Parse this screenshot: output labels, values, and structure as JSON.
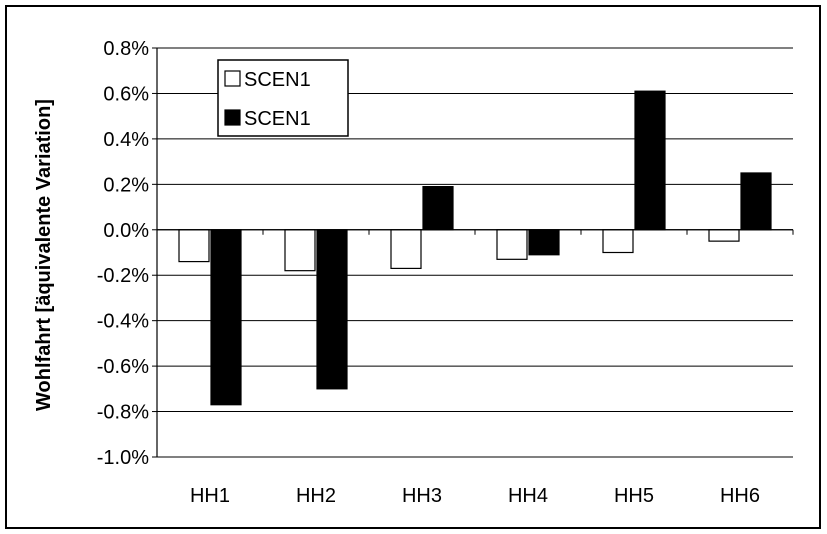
{
  "chart_data": {
    "type": "bar",
    "categories": [
      "HH1",
      "HH2",
      "HH3",
      "HH4",
      "HH5",
      "HH6"
    ],
    "series": [
      {
        "name": "SCEN1",
        "color": "#ffffff",
        "values": [
          -0.0014,
          -0.0018,
          -0.0017,
          -0.0013,
          -0.001,
          -0.0005
        ]
      },
      {
        "name": "SCEN1",
        "color": "#000000",
        "values": [
          -0.0077,
          -0.007,
          0.0019,
          -0.0011,
          0.0061,
          0.0025
        ]
      }
    ],
    "title": "",
    "xlabel": "",
    "ylabel": "Wohlfahrt [äquivalente Variation]",
    "ylim": [
      -0.01,
      0.008
    ],
    "yticks": [
      0.008,
      0.006,
      0.004,
      0.002,
      0.0,
      -0.002,
      -0.004,
      -0.006,
      -0.008,
      -0.01
    ],
    "ytick_labels": [
      "0.8%",
      "0.6%",
      "0.4%",
      "0.2%",
      "0.0%",
      "-0.2%",
      "-0.4%",
      "-0.6%",
      "-0.8%",
      "-1.0%"
    ],
    "grid": true,
    "legend_position": "top-left"
  }
}
